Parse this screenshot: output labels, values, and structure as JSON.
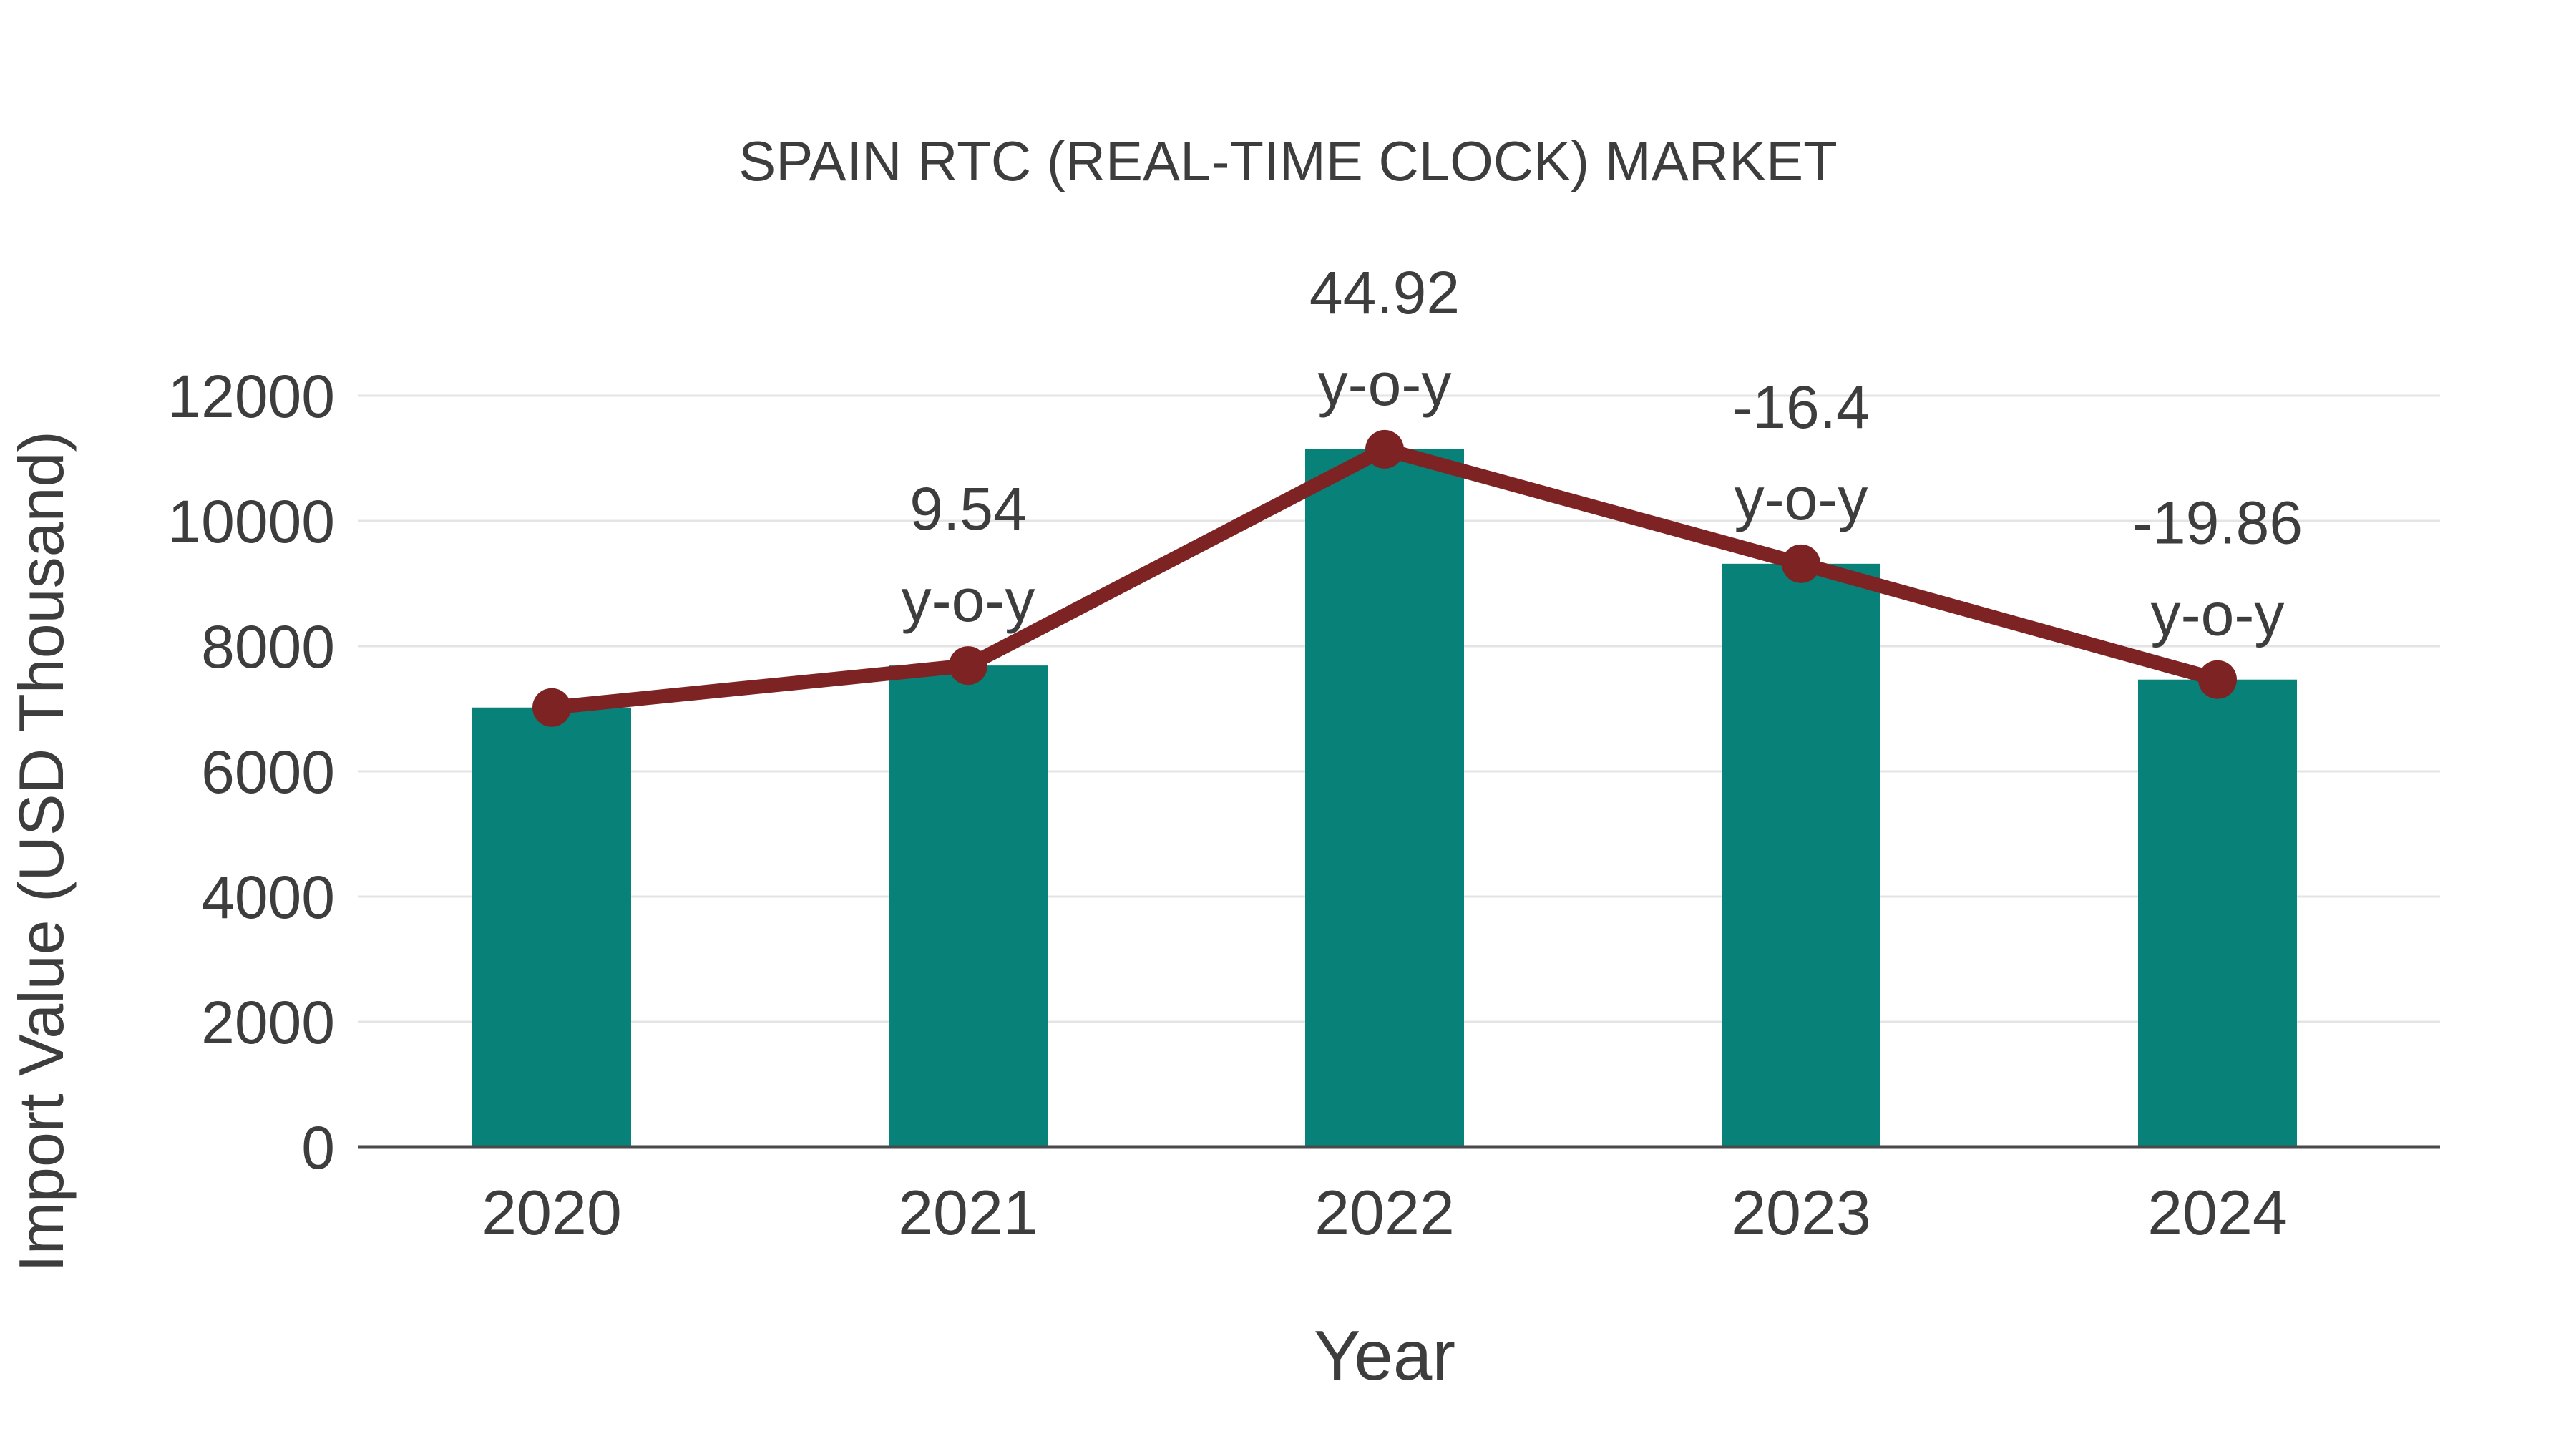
{
  "page": {
    "background": "#ffffff"
  },
  "chart_data": {
    "type": "bar+line",
    "title": "SPAIN RTC (REAL-TIME CLOCK) MARKET",
    "xlabel": "Year",
    "ylabel": "Import Value (USD Thousand)",
    "categories": [
      "2020",
      "2021",
      "2022",
      "2023",
      "2024"
    ],
    "bar_series": {
      "name": "Import Value (USD Thousand)",
      "values": [
        7020,
        7690,
        11144,
        9316,
        7466
      ],
      "color": "#088179"
    },
    "line_series": {
      "name": "y-o-y trend",
      "values": [
        7020,
        7690,
        11144,
        9316,
        7466
      ],
      "color": "#7e2323"
    },
    "annotations": [
      {
        "category": "2020",
        "line1": "",
        "line2": ""
      },
      {
        "category": "2021",
        "line1": "9.54",
        "line2": "y-o-y"
      },
      {
        "category": "2022",
        "line1": "44.92",
        "line2": "y-o-y"
      },
      {
        "category": "2023",
        "line1": "-16.4",
        "line2": "y-o-y"
      },
      {
        "category": "2024",
        "line1": "-19.86",
        "line2": "y-o-y"
      }
    ],
    "ylim": [
      0,
      12000
    ],
    "yticks": [
      0,
      2000,
      4000,
      6000,
      8000,
      10000,
      12000
    ],
    "grid": true,
    "legend": "none",
    "colors": {
      "text": "#3d3d3d",
      "grid": "#e4e4e4",
      "axis": "#4a4a4a",
      "background": "#ffffff"
    }
  }
}
